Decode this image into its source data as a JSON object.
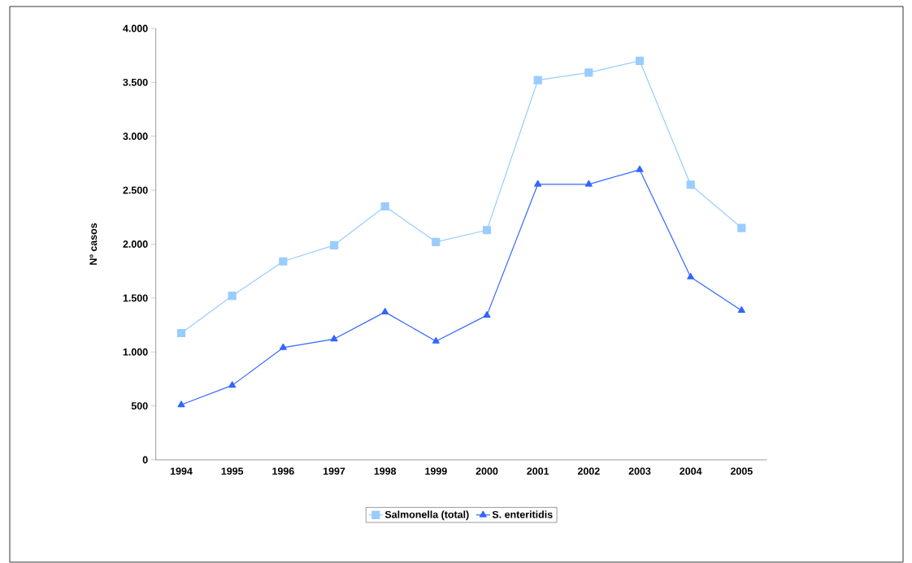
{
  "chart_data": {
    "type": "line",
    "ylabel": "Nº casos",
    "categories": [
      "1994",
      "1995",
      "1996",
      "1997",
      "1998",
      "1999",
      "2000",
      "2001",
      "2002",
      "2003",
      "2004",
      "2005"
    ],
    "series": [
      {
        "name": "Salmonella (total)",
        "color": "#99ccff",
        "marker": "square",
        "values": [
          1175,
          1520,
          1840,
          1990,
          2350,
          2020,
          2130,
          3520,
          3590,
          3700,
          2550,
          2150
        ]
      },
      {
        "name": "S. enteritidis",
        "color": "#3366ff",
        "marker": "triangle",
        "values": [
          510,
          690,
          1040,
          1120,
          1370,
          1100,
          1340,
          2555,
          2555,
          2690,
          1695,
          1385
        ]
      }
    ],
    "ylim": [
      0,
      4000
    ],
    "yticks": [
      {
        "value": 0,
        "label": "0"
      },
      {
        "value": 500,
        "label": "500"
      },
      {
        "value": 1000,
        "label": "1.000"
      },
      {
        "value": 1500,
        "label": "1.500"
      },
      {
        "value": 2000,
        "label": "2.000"
      },
      {
        "value": 2500,
        "label": "2.500"
      },
      {
        "value": 3000,
        "label": "3.000"
      },
      {
        "value": 3500,
        "label": "3.500"
      },
      {
        "value": 4000,
        "label": "4.000"
      }
    ],
    "grid": false,
    "legend": "bottom",
    "line_style": "solid"
  }
}
